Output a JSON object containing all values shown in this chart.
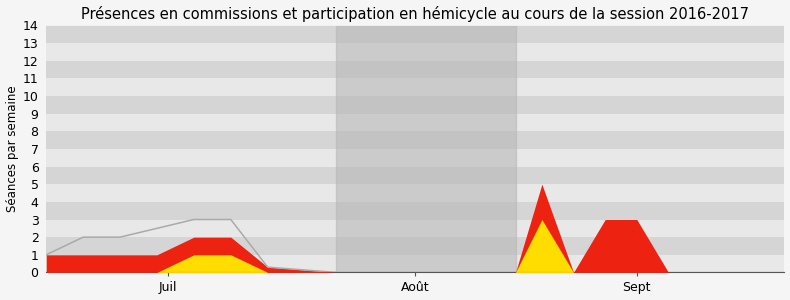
{
  "title": "Présences en commissions et participation en hémicycle au cours de la session 2016-2017",
  "ylabel": "Séances par semaine",
  "ylim": [
    0,
    14
  ],
  "yticks": [
    0,
    1,
    2,
    3,
    4,
    5,
    6,
    7,
    8,
    9,
    10,
    11,
    12,
    13,
    14
  ],
  "xtick_positions": [
    2.3,
    7.0,
    11.2
  ],
  "xtick_labels": [
    "Juil",
    "Août",
    "Sept"
  ],
  "background_color": "#efefef",
  "stripe_colors_even": "#e8e8e8",
  "stripe_colors_odd": "#d5d5d5",
  "gray_block_x_start": 5.5,
  "gray_block_x_end": 8.9,
  "gray_block_top": 14,
  "gray_block_color": "#b8b8b8",
  "gray_block_alpha": 0.6,
  "line_x": [
    0.0,
    0.7,
    1.4,
    2.8,
    3.5,
    4.2,
    5.5
  ],
  "line_y": [
    1.0,
    2.0,
    2.0,
    3.0,
    3.0,
    0.3,
    0.0
  ],
  "line_color": "#aaaaaa",
  "line_width": 1.1,
  "red_x": [
    0.0,
    0.7,
    1.4,
    2.1,
    2.8,
    3.5,
    4.2,
    5.5,
    8.9,
    9.4,
    10.0,
    10.6,
    11.2,
    11.8,
    12.5,
    13.2,
    14.0
  ],
  "red_y": [
    1.0,
    1.0,
    1.0,
    1.0,
    2.0,
    2.0,
    0.3,
    0.0,
    0.0,
    5.0,
    0.0,
    3.0,
    3.0,
    0.0,
    0.0,
    0.0,
    0.0
  ],
  "red_color": "#ee2211",
  "red_alpha": 1.0,
  "yellow_x": [
    2.1,
    2.8,
    3.5,
    4.2,
    8.9,
    9.4,
    10.0
  ],
  "yellow_y": [
    0.0,
    1.0,
    1.0,
    0.0,
    0.0,
    3.0,
    0.0
  ],
  "yellow_color": "#ffdd00",
  "yellow_alpha": 1.0,
  "title_fontsize": 10.5,
  "ylabel_fontsize": 8.5,
  "tick_fontsize": 9,
  "fig_bg": "#f5f5f5"
}
